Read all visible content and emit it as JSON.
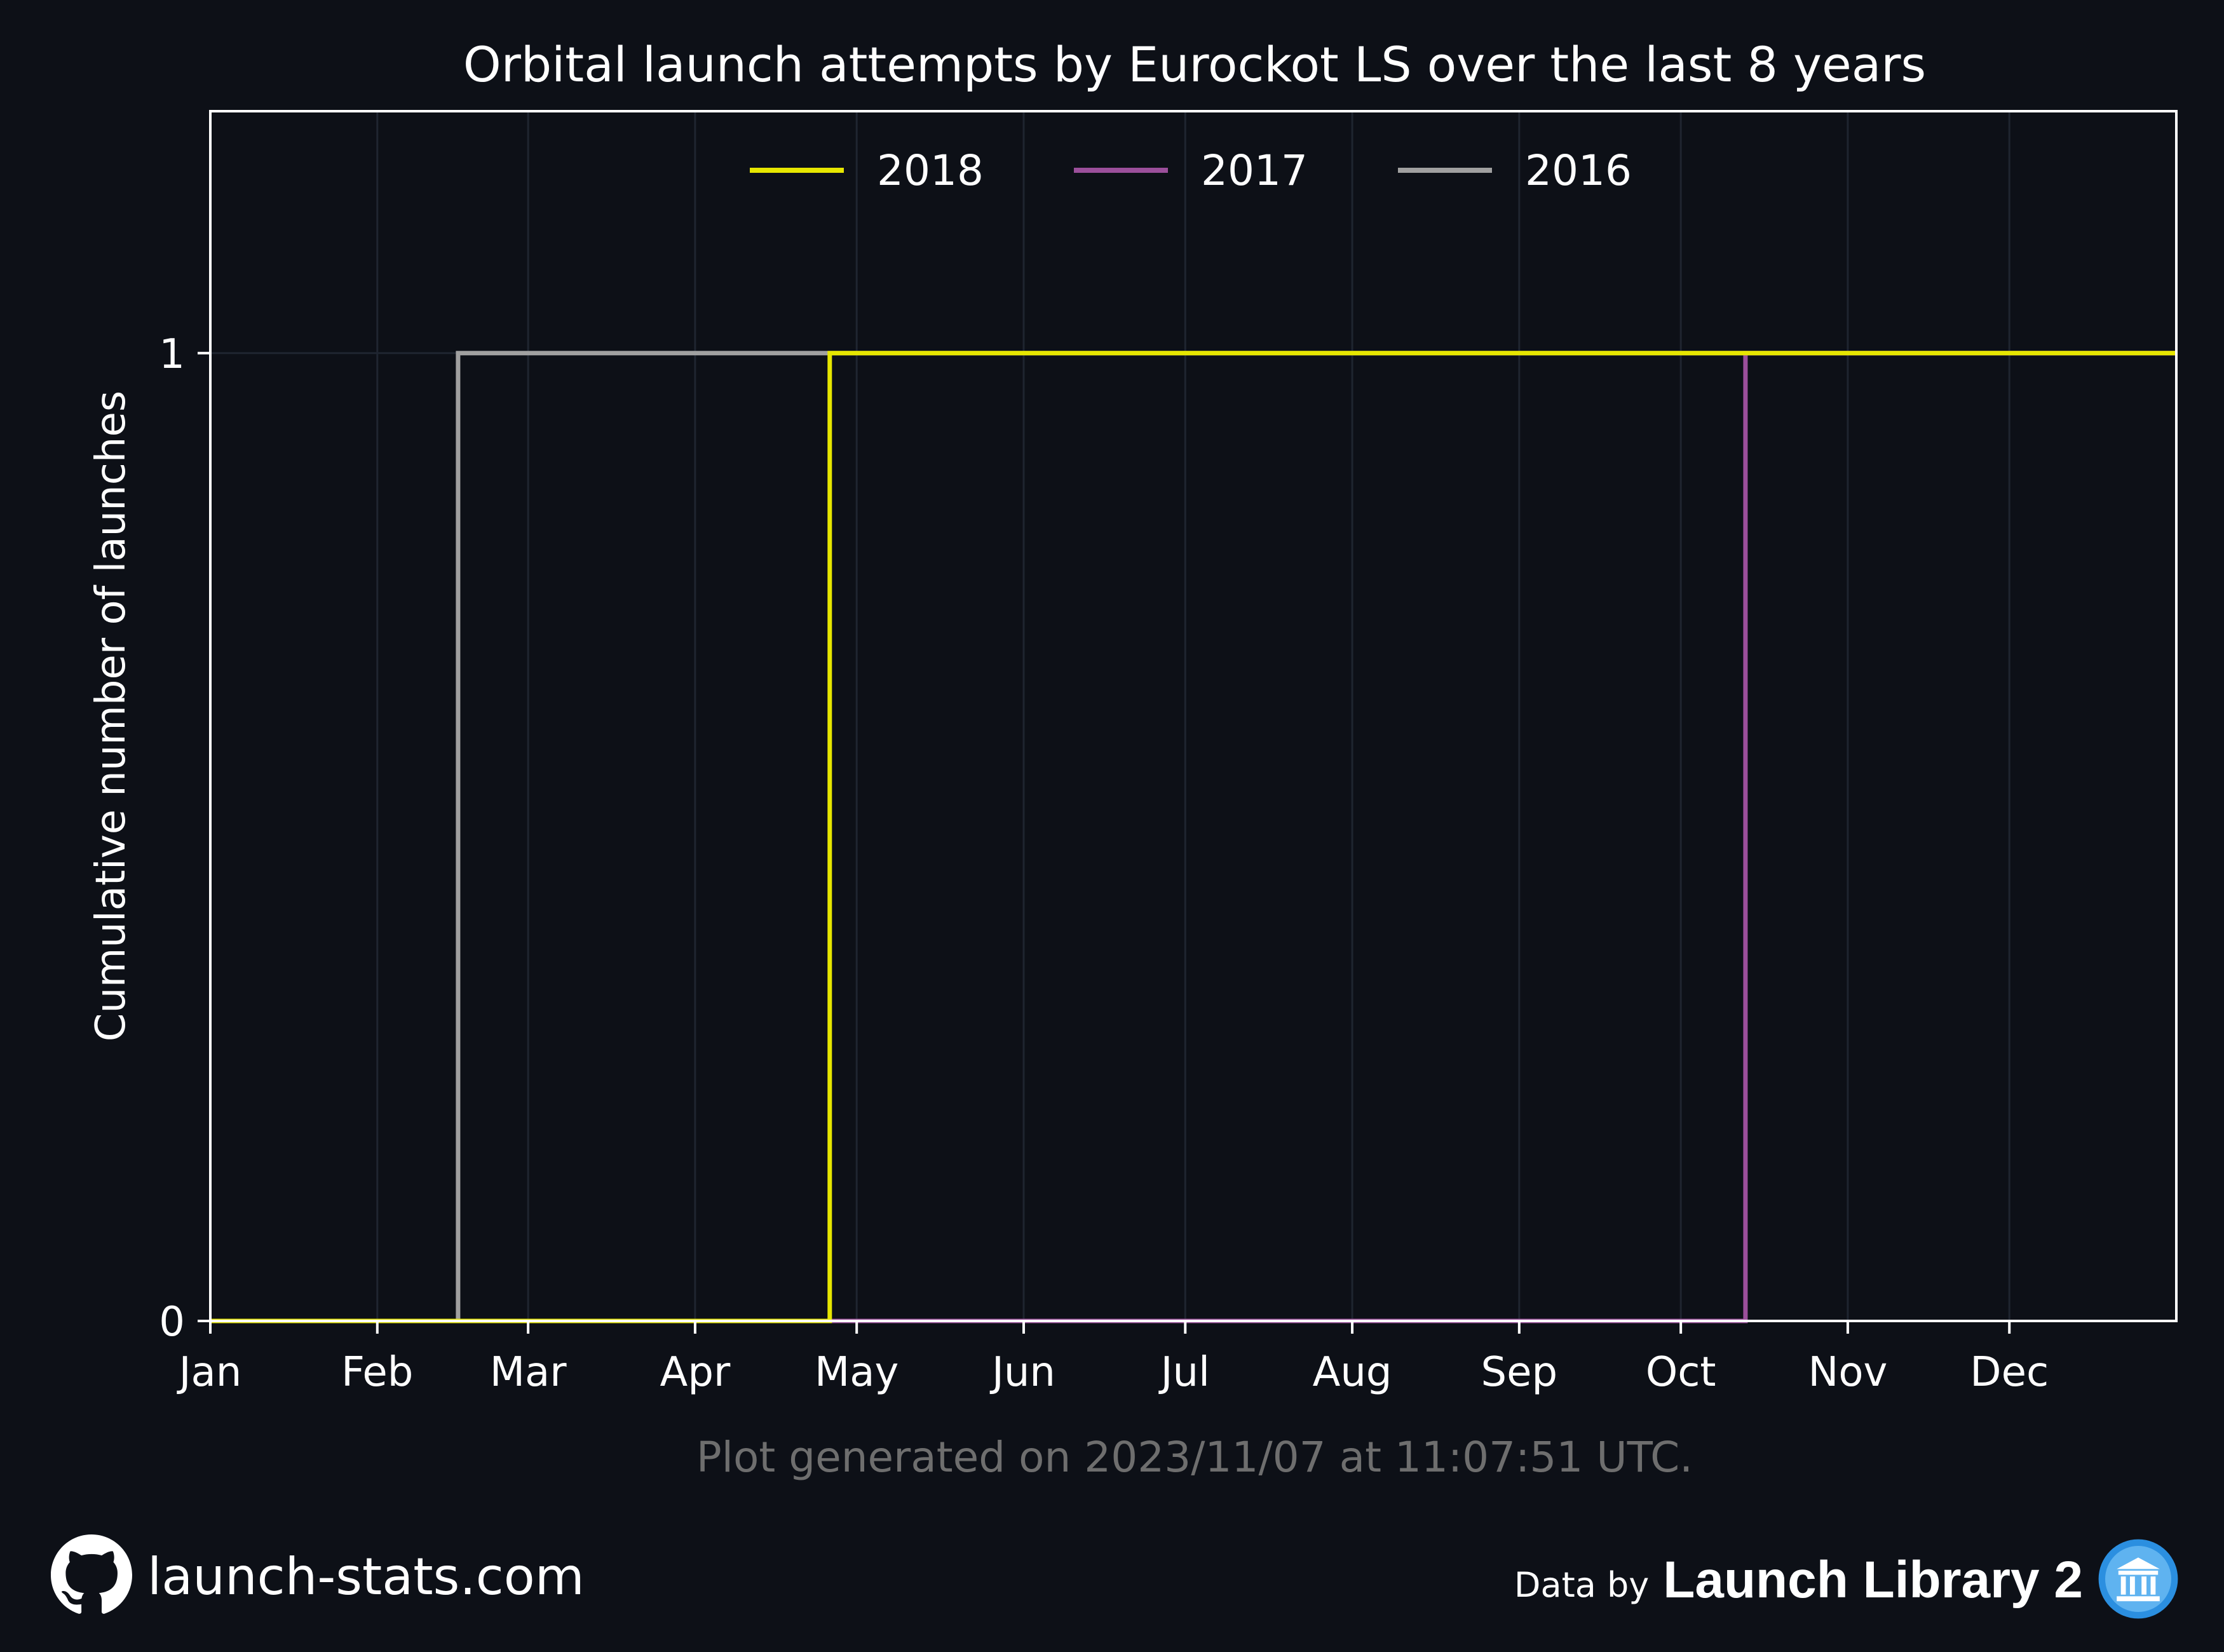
{
  "chart_data": {
    "type": "line",
    "title": "Orbital launch attempts by Eurockot LS over the last 8 years",
    "xlabel": "",
    "ylabel": "Cumulative number of launches",
    "x_ticks": [
      "Jan",
      "Feb",
      "Mar",
      "Apr",
      "May",
      "Jun",
      "Jul",
      "Aug",
      "Sep",
      "Oct",
      "Nov",
      "Dec"
    ],
    "y_ticks": [
      "0",
      "1"
    ],
    "xlim": [
      "Jan 1",
      "Dec 31"
    ],
    "ylim": [
      0,
      1.25
    ],
    "grid": true,
    "legend_position": "top-center",
    "series": [
      {
        "name": "2018",
        "color": "#e6e600",
        "points": [
          [
            "Jan 1",
            0
          ],
          [
            "Apr 26",
            0
          ],
          [
            "Apr 26",
            1
          ],
          [
            "Dec 31",
            1
          ]
        ]
      },
      {
        "name": "2017",
        "color": "#9b4f9b",
        "points": [
          [
            "Jan 1",
            0
          ],
          [
            "Oct 13",
            0
          ],
          [
            "Oct 13",
            1
          ],
          [
            "Dec 31",
            1
          ]
        ]
      },
      {
        "name": "2016",
        "color": "#a0a0a0",
        "points": [
          [
            "Jan 1",
            0
          ],
          [
            "Feb 16",
            0
          ],
          [
            "Feb 16",
            1
          ],
          [
            "Dec 31",
            1
          ]
        ]
      }
    ]
  },
  "footer": {
    "generated": "Plot generated on 2023/11/07 at 11:07:51 UTC.",
    "site": "launch-stats.com",
    "data_by": "Data by",
    "library": "Launch Library 2"
  },
  "icons": {
    "site": "github-icon",
    "library": "launch-library-icon"
  },
  "colors": {
    "background": "#0d1017",
    "axes": "#ffffff",
    "grid": "#1f2530",
    "footnote": "#6e6e6e"
  }
}
